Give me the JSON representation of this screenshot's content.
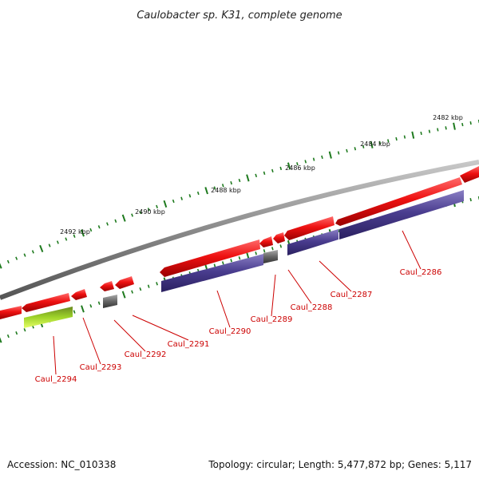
{
  "title": "Caulobacter sp. K31, complete genome",
  "footer": {
    "accession": "Accession: NC_010338",
    "summary": "Topology: circular; Length: 5,477,872 bp; Genes: 5,117"
  },
  "ruler_labels": [
    "2482 kbp",
    "2484 kbp",
    "2486 kbp",
    "2488 kbp",
    "2490 kbp",
    "2492 kbp"
  ],
  "gene_labels": [
    "Caul_2286",
    "Caul_2287",
    "Caul_2288",
    "Caul_2289",
    "Caul_2290",
    "Caul_2291",
    "Caul_2292",
    "Caul_2293",
    "Caul_2294"
  ],
  "colors": {
    "gene": "#e81010",
    "cds": "#4a3d8f",
    "gray_feature": "#666666",
    "misc_feature": "#9fd42a",
    "backbone": "#8a8a8a",
    "tick": "#1e7a1e",
    "label": "#cc0000"
  }
}
